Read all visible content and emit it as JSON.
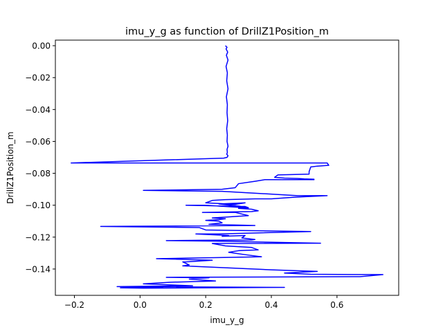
{
  "chart_data": {
    "type": "line",
    "title": "imu_y_g as function of DrillZ1Position_m",
    "xlabel": "imu_y_g",
    "ylabel": "DrillZ1Position_m",
    "xlim": [
      -0.258,
      0.788
    ],
    "ylim": [
      -0.1565,
      0.0035
    ],
    "xticks": [
      -0.2,
      0.0,
      0.2,
      0.4,
      0.6
    ],
    "xtick_labels": [
      "−0.2",
      "0.0",
      "0.2",
      "0.4",
      "0.6"
    ],
    "yticks": [
      0.0,
      -0.02,
      -0.04,
      -0.06,
      -0.08,
      -0.1,
      -0.12,
      -0.14
    ],
    "ytick_labels": [
      "0.00",
      "−0.02",
      "−0.04",
      "−0.06",
      "−0.08",
      "−0.10",
      "−0.12",
      "−0.14"
    ],
    "grid": false,
    "line_color": "#0000ff",
    "series": [
      {
        "x": [
          0.26,
          0.265,
          0.262,
          0.267,
          0.263,
          0.268,
          0.262,
          0.266,
          0.264,
          0.268,
          0.263,
          0.266,
          0.265,
          0.267,
          0.264,
          0.266,
          0.265,
          0.268,
          0.265,
          0.266,
          0.264,
          0.268,
          0.265,
          0.255,
          -0.21,
          0.57,
          0.575,
          0.54,
          0.52,
          0.515,
          0.515,
          0.42,
          0.41,
          0.44,
          0.48,
          0.5,
          0.53,
          0.53,
          0.38,
          0.35,
          0.3,
          0.29,
          0.25,
          0.01,
          0.25,
          0.31,
          0.48,
          0.57,
          0.47,
          0.4,
          0.35,
          0.26,
          0.22,
          0.2,
          0.29,
          0.32,
          0.24,
          0.3,
          0.33,
          0.32,
          0.14,
          0.2,
          0.33,
          0.3,
          0.34,
          0.36,
          0.34,
          0.19,
          0.29,
          0.3,
          0.33,
          0.22,
          0.26,
          0.24,
          0.2,
          0.24,
          0.25,
          0.21,
          0.35,
          -0.12,
          0.18,
          0.2,
          0.52,
          0.24,
          0.17,
          0.27,
          0.25,
          0.32,
          0.31,
          0.35,
          0.34,
          0.18,
          0.08,
          0.23,
          0.55,
          0.22,
          0.26,
          0.34,
          0.36,
          0.3,
          0.27,
          0.32,
          0.37,
          0.27,
          0.05,
          0.22,
          0.14,
          0.13,
          0.15,
          0.13,
          0.4,
          0.54,
          0.44,
          0.52,
          0.74,
          0.67,
          0.08,
          0.21,
          0.15,
          0.23,
          0.09,
          0.01,
          0.16,
          -0.07,
          0.44,
          0.01,
          -0.06,
          0.07
        ]
      }
    ],
    "y": [
      0.0,
      -0.001,
      -0.002,
      -0.004,
      -0.006,
      -0.009,
      -0.013,
      -0.017,
      -0.022,
      -0.027,
      -0.032,
      -0.037,
      -0.042,
      -0.047,
      -0.052,
      -0.056,
      -0.06,
      -0.063,
      -0.065,
      -0.067,
      -0.068,
      -0.069,
      -0.07,
      -0.0705,
      -0.0735,
      -0.0735,
      -0.075,
      -0.0755,
      -0.076,
      -0.079,
      -0.0805,
      -0.081,
      -0.0825,
      -0.083,
      -0.0832,
      -0.0835,
      -0.0837,
      -0.084,
      -0.084,
      -0.085,
      -0.0865,
      -0.089,
      -0.09,
      -0.0907,
      -0.0913,
      -0.092,
      -0.094,
      -0.094,
      -0.095,
      -0.096,
      -0.096,
      -0.0965,
      -0.097,
      -0.0985,
      -0.0995,
      -0.0985,
      -0.0992,
      -0.1005,
      -0.1015,
      -0.1008,
      -0.1,
      -0.1,
      -0.1017,
      -0.102,
      -0.1025,
      -0.1035,
      -0.104,
      -0.1045,
      -0.1045,
      -0.105,
      -0.1065,
      -0.108,
      -0.1085,
      -0.109,
      -0.1095,
      -0.11,
      -0.111,
      -0.112,
      -0.1127,
      -0.1133,
      -0.114,
      -0.1155,
      -0.1165,
      -0.118,
      -0.118,
      -0.119,
      -0.1195,
      -0.119,
      -0.1205,
      -0.1215,
      -0.1218,
      -0.122,
      -0.1222,
      -0.1225,
      -0.1238,
      -0.124,
      -0.1255,
      -0.1265,
      -0.128,
      -0.1285,
      -0.1295,
      -0.131,
      -0.1323,
      -0.1327,
      -0.1335,
      -0.1345,
      -0.1355,
      -0.1355,
      -0.1375,
      -0.138,
      -0.1405,
      -0.1415,
      -0.1425,
      -0.1433,
      -0.1435,
      -0.1448,
      -0.1452,
      -0.1455,
      -0.1463,
      -0.1475,
      -0.1483,
      -0.1493,
      -0.1505,
      -0.151,
      -0.1515,
      -0.152,
      -0.1518,
      -0.1514
    ]
  }
}
